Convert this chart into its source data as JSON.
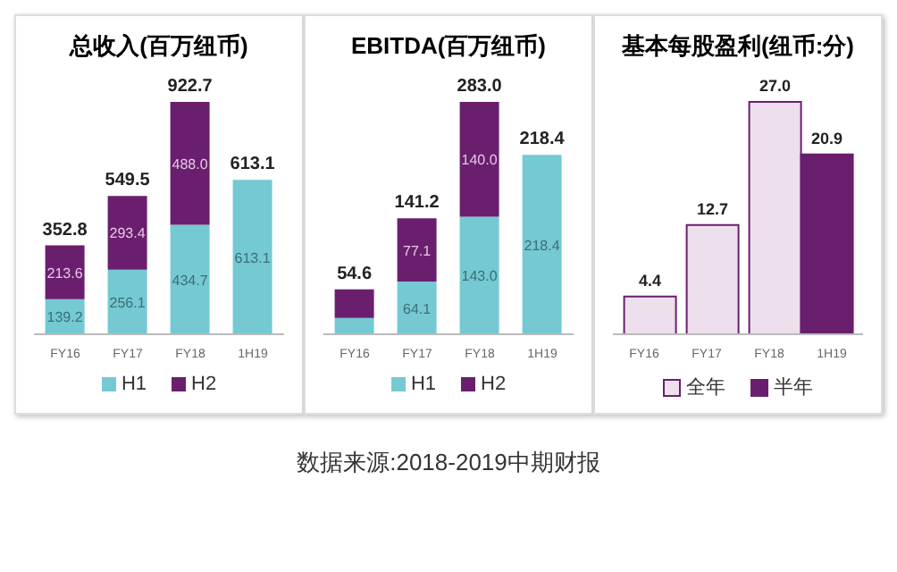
{
  "chart_data": [
    {
      "type": "bar",
      "title": "总收入(百万纽币)",
      "categories": [
        "FY16",
        "FY17",
        "FY18",
        "1H19"
      ],
      "stacked": true,
      "legend": "bottom",
      "annotations": [
        "数据来源:2018-2019中期财报"
      ],
      "series": [
        {
          "name": "H1",
          "color": "#74c9d3",
          "values": [
            139.2,
            256.1,
            434.7,
            613.1
          ],
          "value_labels": [
            "139.2",
            "256.1",
            "434.7",
            "613.1"
          ]
        },
        {
          "name": "H2",
          "color": "#6a1f6e",
          "values": [
            213.6,
            293.4,
            488.0,
            null
          ],
          "value_labels": [
            "213.6",
            "293.4",
            "488.0",
            null
          ]
        }
      ],
      "totals": [
        "352.8",
        "549.5",
        "922.7",
        "613.1"
      ]
    },
    {
      "type": "bar",
      "title": "EBITDA(百万纽币)",
      "categories": [
        "FY16",
        "FY17",
        "FY18",
        "1H19"
      ],
      "stacked": true,
      "legend": "bottom",
      "series": [
        {
          "name": "H1",
          "color": "#74c9d3",
          "values": [
            20,
            64.1,
            143.0,
            218.4
          ],
          "value_labels": [
            null,
            "64.1",
            "143.0",
            "218.4"
          ]
        },
        {
          "name": "H2",
          "color": "#6a1f6e",
          "values": [
            34.6,
            77.1,
            140.0,
            null
          ],
          "value_labels": [
            null,
            "77.1",
            "140.0",
            null
          ]
        }
      ],
      "totals": [
        "54.6",
        "141.2",
        "283.0",
        "218.4"
      ]
    },
    {
      "type": "bar",
      "title": "基本每股盈利(纽币:分)",
      "categories": [
        "FY16",
        "FY17",
        "FY18",
        "1H19"
      ],
      "legend": "bottom",
      "series": [
        {
          "name": "全年",
          "color": "#eddfeb",
          "values": [
            4.4,
            12.7,
            27.0,
            null
          ],
          "value_labels": [
            "4.4",
            "12.7",
            "27.0",
            null
          ]
        },
        {
          "name": "半年",
          "color": "#6a1f6e",
          "values": [
            null,
            null,
            null,
            20.9
          ],
          "value_labels": [
            null,
            null,
            null,
            "20.9"
          ]
        }
      ]
    }
  ]
}
